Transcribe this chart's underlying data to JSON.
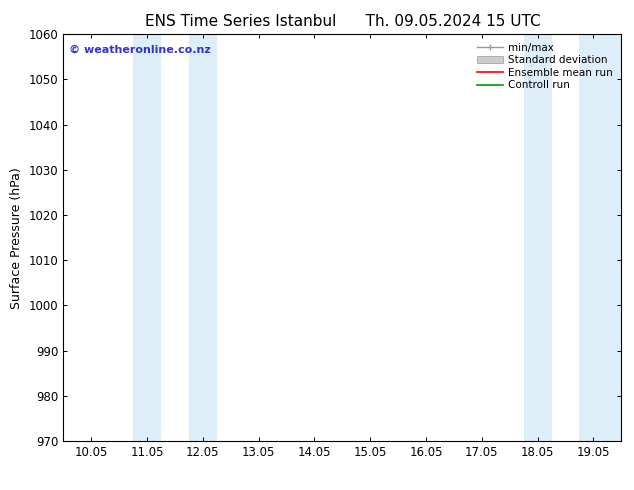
{
  "title_left": "ENS Time Series Istanbul",
  "title_right": "Th. 09.05.2024 15 UTC",
  "ylabel": "Surface Pressure (hPa)",
  "ylim": [
    970,
    1060
  ],
  "yticks": [
    970,
    980,
    990,
    1000,
    1010,
    1020,
    1030,
    1040,
    1050,
    1060
  ],
  "x_tick_labels": [
    "10.05",
    "11.05",
    "12.05",
    "13.05",
    "14.05",
    "15.05",
    "16.05",
    "17.05",
    "18.05",
    "19.05"
  ],
  "x_tick_positions": [
    0,
    1,
    2,
    3,
    4,
    5,
    6,
    7,
    8,
    9
  ],
  "xlim": [
    -0.5,
    9.5
  ],
  "shaded_bands": [
    {
      "x_start": 0.75,
      "x_end": 1.25
    },
    {
      "x_start": 1.75,
      "x_end": 2.25
    },
    {
      "x_start": 7.75,
      "x_end": 8.25
    },
    {
      "x_start": 8.75,
      "x_end": 9.5
    }
  ],
  "shade_color": "#ddeef8",
  "background_color": "#ffffff",
  "copyright_text": "© weatheronline.co.nz",
  "copyright_color": "#3333cc",
  "legend_items": [
    {
      "label": "min/max",
      "color": "#aaaaaa"
    },
    {
      "label": "Standard deviation",
      "color": "#cccccc"
    },
    {
      "label": "Ensemble mean run",
      "color": "#ff0000"
    },
    {
      "label": "Controll run",
      "color": "#009900"
    }
  ],
  "title_fontsize": 11,
  "axis_fontsize": 9,
  "tick_fontsize": 8.5,
  "legend_fontsize": 7.5
}
